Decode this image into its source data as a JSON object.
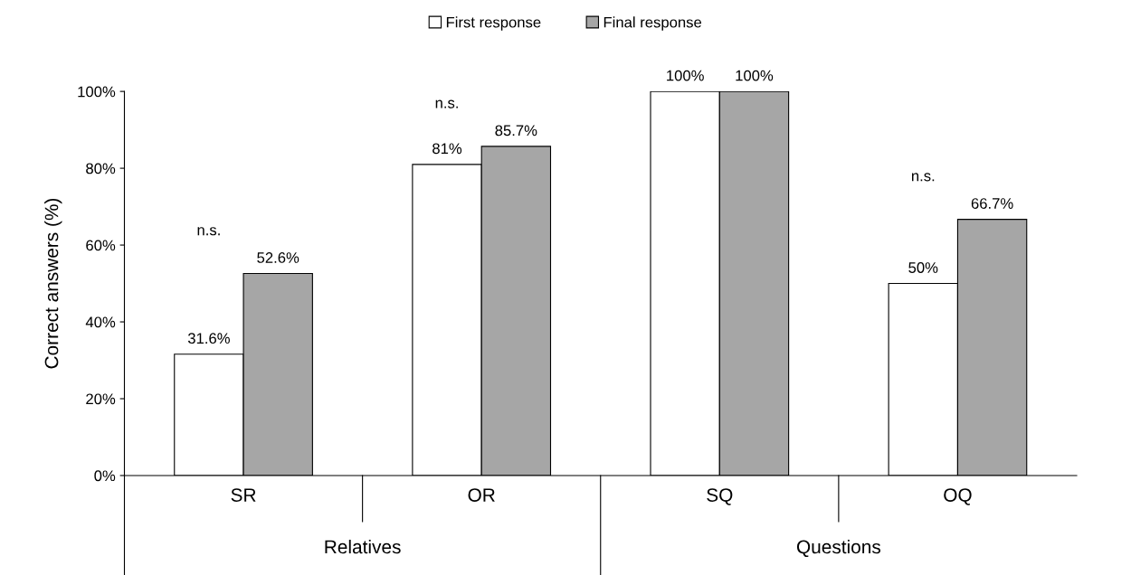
{
  "chart_data": {
    "type": "bar",
    "ylabel": "Correct answers (%)",
    "categories": [
      "SR",
      "OR",
      "SQ",
      "OQ"
    ],
    "series": [
      {
        "name": "First response",
        "color": "#ffffff",
        "values": [
          31.6,
          81,
          100,
          50
        ],
        "value_labels": [
          "31.6%",
          "81%",
          "100%",
          "50%"
        ]
      },
      {
        "name": "Final response",
        "color": "#a6a6a6",
        "values": [
          52.6,
          85.7,
          100,
          66.7
        ],
        "value_labels": [
          "52.6%",
          "85.7%",
          "100%",
          "66.7%"
        ]
      }
    ],
    "ylim": [
      0,
      100
    ],
    "yticks": [
      {
        "value": 0,
        "label": "0%"
      },
      {
        "value": 20,
        "label": "20%"
      },
      {
        "value": 40,
        "label": "40%"
      },
      {
        "value": 60,
        "label": "60%"
      },
      {
        "value": 80,
        "label": "80%"
      },
      {
        "value": 100,
        "label": "100%"
      }
    ],
    "annotations": [
      "n.s.",
      "n.s.",
      "n.s.",
      "Relatives",
      "Questions"
    ],
    "grid": false,
    "legend": "top"
  }
}
